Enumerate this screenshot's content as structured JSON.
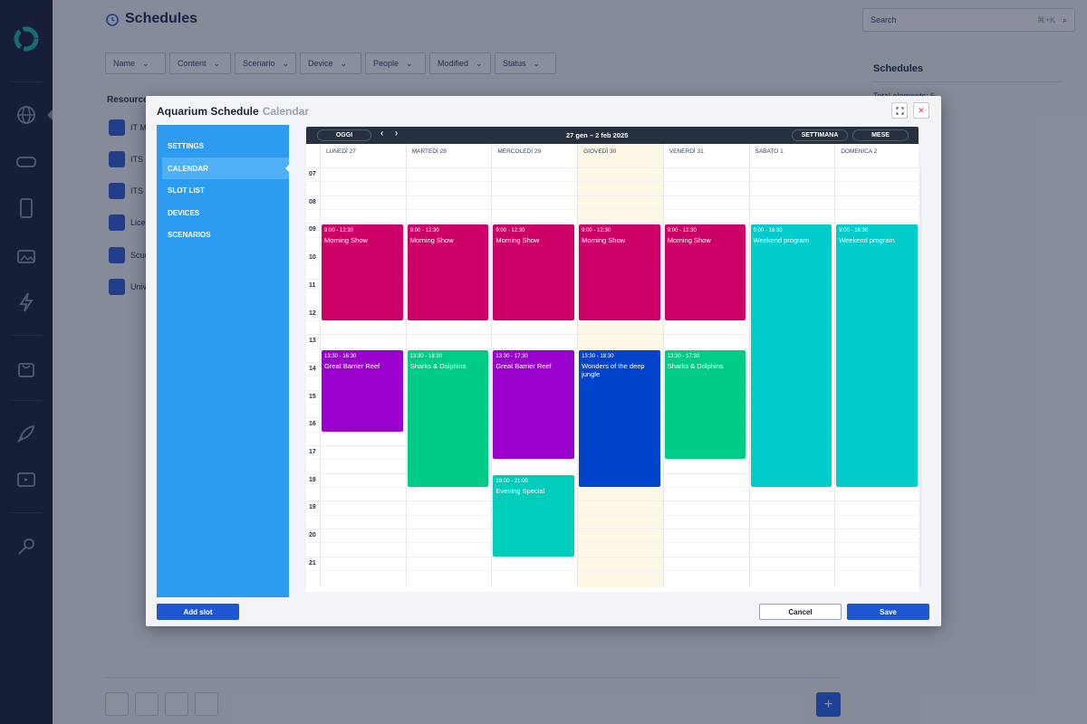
{
  "page": {
    "title": "Schedules",
    "filters": [
      "Name",
      "Content",
      "Scenario",
      "Device",
      "People",
      "Modified",
      "Status"
    ],
    "resources_header": "Resource",
    "resources": [
      "IT M",
      "ITS",
      "ITS M",
      "Lice",
      "Scuo",
      "Unive"
    ],
    "search_placeholder": "Search",
    "search_shortcut": "⌘+K",
    "right_panel_title": "Schedules",
    "right_panel_total": "Total elements: 6"
  },
  "modal": {
    "title": "Aquarium Schedule",
    "subtitle": "Calendar",
    "menu": [
      "SETTINGS",
      "CALENDAR",
      "SLOT LIST",
      "DEVICES",
      "SCENARIOS"
    ],
    "active_menu": "CALENDAR",
    "add_slot": "Add slot",
    "cancel": "Cancel",
    "save": "Save"
  },
  "calendar": {
    "today_btn": "OGGI",
    "range": "27 gen – 2 feb 2025",
    "week_btn": "SETTIMANA",
    "month_btn": "MESE",
    "days": [
      "LUNEDÌ 27",
      "MARTEDÌ 28",
      "MERCOLEDÌ 29",
      "GIOVEDÌ 30",
      "VENERDÌ 31",
      "SABATO 1",
      "DOMENICA 2"
    ],
    "today_index": 3,
    "hours": [
      "07",
      "08",
      "09",
      "10",
      "11",
      "12",
      "13",
      "14",
      "15",
      "16",
      "17",
      "18",
      "19",
      "20",
      "21"
    ],
    "events": [
      {
        "day": 0,
        "start": 9,
        "end": 12.5,
        "time": "9:00 - 12:30",
        "name": "Morning Show",
        "color": "#cc0066"
      },
      {
        "day": 1,
        "start": 9,
        "end": 12.5,
        "time": "9:00 - 12:30",
        "name": "Morning Show",
        "color": "#cc0066"
      },
      {
        "day": 2,
        "start": 9,
        "end": 12.5,
        "time": "9:00 - 12:30",
        "name": "Morning Show",
        "color": "#cc0066"
      },
      {
        "day": 3,
        "start": 9,
        "end": 12.5,
        "time": "9:00 - 12:30",
        "name": "Morning Show",
        "color": "#cc0066"
      },
      {
        "day": 4,
        "start": 9,
        "end": 12.5,
        "time": "9:00 - 12:30",
        "name": "Morning Show",
        "color": "#cc0066"
      },
      {
        "day": 5,
        "start": 9,
        "end": 18.5,
        "time": "9:00 - 18:30",
        "name": "Weekend program",
        "color": "#00cccc"
      },
      {
        "day": 6,
        "start": 9,
        "end": 18.5,
        "time": "9:00 - 18:30",
        "name": "Weekend program",
        "color": "#00cccc"
      },
      {
        "day": 0,
        "start": 13.5,
        "end": 16.5,
        "time": "13:30 - 16:30",
        "name": "Great Barrier Reef",
        "color": "#9900cc"
      },
      {
        "day": 1,
        "start": 13.5,
        "end": 18.5,
        "time": "13:30 - 18:30",
        "name": "Sharks & Dolphins",
        "color": "#00cc88"
      },
      {
        "day": 2,
        "start": 13.5,
        "end": 17.5,
        "time": "13:30 - 17:30",
        "name": "Great Barrier Reef",
        "color": "#9900cc"
      },
      {
        "day": 3,
        "start": 13.5,
        "end": 18.5,
        "time": "13:30 - 18:30",
        "name": "Wonders of the deep jungle",
        "color": "#0044cc"
      },
      {
        "day": 4,
        "start": 13.5,
        "end": 17.5,
        "time": "13:30 - 17:30",
        "name": "Sharks & Dolphins",
        "color": "#00cc88"
      },
      {
        "day": 2,
        "start": 18,
        "end": 21,
        "time": "18:00 - 21:00",
        "name": "Evening Special",
        "color": "#00ccbb"
      }
    ]
  },
  "icons": [
    "logo-icon",
    "globe-icon",
    "vr-headset-icon",
    "tablet-icon",
    "media-icon",
    "bolt-icon",
    "bag-icon",
    "rocket-icon",
    "screen-icon",
    "key-icon",
    "alarm-clock-icon",
    "search-icon",
    "expand-icon",
    "close-icon",
    "edit-icon",
    "eye-icon",
    "toggle-icon",
    "trash-icon",
    "plus-icon"
  ]
}
